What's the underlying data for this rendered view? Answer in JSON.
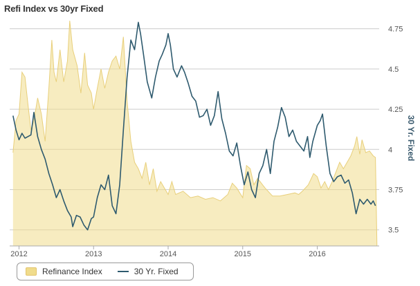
{
  "chart_data": {
    "type": "line",
    "title": "Refi Index vs 30yr Fixed",
    "x_ticks": [
      "2012",
      "2013",
      "2014",
      "2015",
      "2016"
    ],
    "y_right": {
      "label": "30 Yr. Fixed",
      "ticks": [
        "3.5",
        "3.75",
        "4",
        "4.25",
        "4.5",
        "4.75"
      ],
      "range": [
        3.4,
        4.8
      ]
    },
    "legend_position": "bottom-left",
    "grid": true,
    "series": [
      {
        "name": "Refinance Index",
        "kind": "area",
        "color": "#f0dc8c",
        "points": [
          [
            2011.92,
            3.98
          ],
          [
            2011.96,
            4.18
          ],
          [
            2012.0,
            4.22
          ],
          [
            2012.04,
            4.48
          ],
          [
            2012.08,
            4.45
          ],
          [
            2012.12,
            4.28
          ],
          [
            2012.16,
            4.12
          ],
          [
            2012.2,
            4.18
          ],
          [
            2012.25,
            4.32
          ],
          [
            2012.3,
            4.22
          ],
          [
            2012.35,
            4.05
          ],
          [
            2012.4,
            4.38
          ],
          [
            2012.44,
            4.68
          ],
          [
            2012.47,
            4.48
          ],
          [
            2012.5,
            4.42
          ],
          [
            2012.55,
            4.62
          ],
          [
            2012.6,
            4.42
          ],
          [
            2012.65,
            4.55
          ],
          [
            2012.68,
            4.8
          ],
          [
            2012.72,
            4.62
          ],
          [
            2012.78,
            4.52
          ],
          [
            2012.83,
            4.35
          ],
          [
            2012.88,
            4.6
          ],
          [
            2012.92,
            4.4
          ],
          [
            2012.97,
            4.35
          ],
          [
            2013.0,
            4.25
          ],
          [
            2013.05,
            4.38
          ],
          [
            2013.1,
            4.5
          ],
          [
            2013.15,
            4.38
          ],
          [
            2013.2,
            4.48
          ],
          [
            2013.25,
            4.55
          ],
          [
            2013.3,
            4.58
          ],
          [
            2013.35,
            4.5
          ],
          [
            2013.4,
            4.7
          ],
          [
            2013.45,
            4.3
          ],
          [
            2013.5,
            4.05
          ],
          [
            2013.55,
            3.92
          ],
          [
            2013.6,
            3.88
          ],
          [
            2013.65,
            3.82
          ],
          [
            2013.7,
            3.92
          ],
          [
            2013.75,
            3.78
          ],
          [
            2013.8,
            3.88
          ],
          [
            2013.85,
            3.74
          ],
          [
            2013.9,
            3.8
          ],
          [
            2013.95,
            3.76
          ],
          [
            2014.0,
            3.72
          ],
          [
            2014.05,
            3.8
          ],
          [
            2014.1,
            3.72
          ],
          [
            2014.2,
            3.74
          ],
          [
            2014.3,
            3.7
          ],
          [
            2014.4,
            3.71
          ],
          [
            2014.5,
            3.69
          ],
          [
            2014.6,
            3.7
          ],
          [
            2014.7,
            3.68
          ],
          [
            2014.8,
            3.72
          ],
          [
            2014.86,
            3.79
          ],
          [
            2014.92,
            3.76
          ],
          [
            2015.0,
            3.7
          ],
          [
            2015.05,
            3.9
          ],
          [
            2015.1,
            3.88
          ],
          [
            2015.15,
            3.78
          ],
          [
            2015.2,
            3.82
          ],
          [
            2015.3,
            3.76
          ],
          [
            2015.4,
            3.71
          ],
          [
            2015.5,
            3.71
          ],
          [
            2015.6,
            3.72
          ],
          [
            2015.7,
            3.73
          ],
          [
            2015.75,
            3.72
          ],
          [
            2015.8,
            3.74
          ],
          [
            2015.88,
            3.78
          ],
          [
            2015.95,
            3.85
          ],
          [
            2016.0,
            3.83
          ],
          [
            2016.05,
            3.76
          ],
          [
            2016.1,
            3.8
          ],
          [
            2016.15,
            3.75
          ],
          [
            2016.2,
            3.8
          ],
          [
            2016.25,
            3.86
          ],
          [
            2016.3,
            3.92
          ],
          [
            2016.35,
            3.88
          ],
          [
            2016.4,
            3.92
          ],
          [
            2016.45,
            3.96
          ],
          [
            2016.5,
            4.02
          ],
          [
            2016.53,
            4.08
          ],
          [
            2016.57,
            3.97
          ],
          [
            2016.6,
            4.06
          ],
          [
            2016.65,
            3.98
          ],
          [
            2016.7,
            3.99
          ],
          [
            2016.75,
            3.96
          ],
          [
            2016.78,
            3.95
          ],
          [
            2016.8,
            3.4
          ]
        ]
      },
      {
        "name": "30 Yr. Fixed",
        "kind": "line",
        "color": "#2e5a6e",
        "points": [
          [
            2011.92,
            4.21
          ],
          [
            2011.96,
            4.12
          ],
          [
            2012.0,
            4.06
          ],
          [
            2012.04,
            4.1
          ],
          [
            2012.08,
            4.07
          ],
          [
            2012.12,
            4.08
          ],
          [
            2012.16,
            4.09
          ],
          [
            2012.2,
            4.23
          ],
          [
            2012.25,
            4.08
          ],
          [
            2012.3,
            4.0
          ],
          [
            2012.35,
            3.94
          ],
          [
            2012.4,
            3.85
          ],
          [
            2012.45,
            3.78
          ],
          [
            2012.5,
            3.7
          ],
          [
            2012.55,
            3.75
          ],
          [
            2012.6,
            3.68
          ],
          [
            2012.65,
            3.62
          ],
          [
            2012.7,
            3.58
          ],
          [
            2012.72,
            3.52
          ],
          [
            2012.77,
            3.59
          ],
          [
            2012.82,
            3.58
          ],
          [
            2012.87,
            3.53
          ],
          [
            2012.92,
            3.5
          ],
          [
            2012.97,
            3.57
          ],
          [
            2013.0,
            3.58
          ],
          [
            2013.05,
            3.7
          ],
          [
            2013.1,
            3.78
          ],
          [
            2013.15,
            3.75
          ],
          [
            2013.2,
            3.84
          ],
          [
            2013.25,
            3.65
          ],
          [
            2013.3,
            3.6
          ],
          [
            2013.35,
            3.78
          ],
          [
            2013.4,
            4.12
          ],
          [
            2013.45,
            4.45
          ],
          [
            2013.5,
            4.68
          ],
          [
            2013.55,
            4.62
          ],
          [
            2013.6,
            4.79
          ],
          [
            2013.63,
            4.72
          ],
          [
            2013.67,
            4.59
          ],
          [
            2013.72,
            4.42
          ],
          [
            2013.78,
            4.32
          ],
          [
            2013.83,
            4.45
          ],
          [
            2013.88,
            4.55
          ],
          [
            2013.92,
            4.59
          ],
          [
            2013.97,
            4.65
          ],
          [
            2014.0,
            4.72
          ],
          [
            2014.03,
            4.65
          ],
          [
            2014.07,
            4.5
          ],
          [
            2014.12,
            4.45
          ],
          [
            2014.18,
            4.52
          ],
          [
            2014.22,
            4.48
          ],
          [
            2014.27,
            4.41
          ],
          [
            2014.32,
            4.33
          ],
          [
            2014.37,
            4.3
          ],
          [
            2014.42,
            4.2
          ],
          [
            2014.47,
            4.21
          ],
          [
            2014.52,
            4.25
          ],
          [
            2014.57,
            4.15
          ],
          [
            2014.62,
            4.21
          ],
          [
            2014.67,
            4.36
          ],
          [
            2014.72,
            4.19
          ],
          [
            2014.77,
            4.1
          ],
          [
            2014.82,
            3.99
          ],
          [
            2014.87,
            3.96
          ],
          [
            2014.92,
            4.04
          ],
          [
            2014.97,
            3.9
          ],
          [
            2015.02,
            3.78
          ],
          [
            2015.07,
            3.86
          ],
          [
            2015.12,
            3.75
          ],
          [
            2015.17,
            3.7
          ],
          [
            2015.22,
            3.85
          ],
          [
            2015.27,
            3.9
          ],
          [
            2015.32,
            4.0
          ],
          [
            2015.37,
            3.85
          ],
          [
            2015.42,
            4.05
          ],
          [
            2015.47,
            4.14
          ],
          [
            2015.52,
            4.26
          ],
          [
            2015.57,
            4.2
          ],
          [
            2015.62,
            4.08
          ],
          [
            2015.67,
            4.12
          ],
          [
            2015.72,
            4.05
          ],
          [
            2015.77,
            4.02
          ],
          [
            2015.82,
            3.99
          ],
          [
            2015.87,
            4.08
          ],
          [
            2015.9,
            3.95
          ],
          [
            2015.94,
            4.05
          ],
          [
            2016.0,
            4.15
          ],
          [
            2016.04,
            4.18
          ],
          [
            2016.07,
            4.22
          ],
          [
            2016.12,
            4.02
          ],
          [
            2016.17,
            3.85
          ],
          [
            2016.22,
            3.8
          ],
          [
            2016.27,
            3.83
          ],
          [
            2016.32,
            3.84
          ],
          [
            2016.37,
            3.79
          ],
          [
            2016.42,
            3.81
          ],
          [
            2016.47,
            3.73
          ],
          [
            2016.52,
            3.6
          ],
          [
            2016.57,
            3.69
          ],
          [
            2016.62,
            3.66
          ],
          [
            2016.67,
            3.69
          ],
          [
            2016.72,
            3.66
          ],
          [
            2016.75,
            3.68
          ],
          [
            2016.78,
            3.65
          ]
        ]
      }
    ]
  },
  "legend": {
    "refi_label": "Refinance Index",
    "fixed_label": "30 Yr. Fixed"
  }
}
